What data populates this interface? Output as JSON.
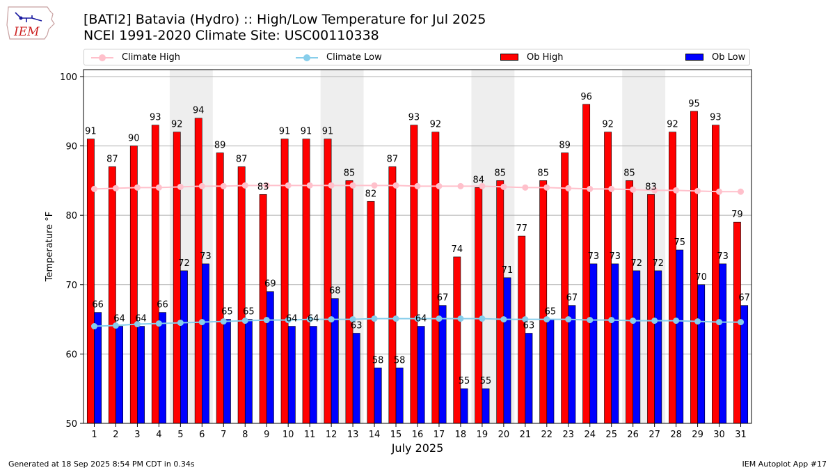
{
  "header": {
    "title_line1": "[BATI2] Batavia (Hydro) :: High/Low Temperature for Jul 2025",
    "title_line2": "NCEI 1991-2020 Climate Site: USC00110338",
    "logo_text": "IEM"
  },
  "footer": {
    "generated": "Generated at 18 Sep 2025 8:54 PM CDT in 0.34s",
    "app": "IEM Autoplot App #17"
  },
  "colors": {
    "ob_high": "#ff0000",
    "ob_low": "#0000ff",
    "climate_high": "#ffc0cb",
    "climate_low": "#87ceeb",
    "weekend_shade": "#eeeeee",
    "grid": "#b0b0b0"
  },
  "chart_data": {
    "type": "bar",
    "xlabel": "July 2025",
    "ylabel": "Temperature °F",
    "ylim": [
      50,
      101
    ],
    "yticks": [
      50,
      60,
      70,
      80,
      90,
      100
    ],
    "grid": "horizontal",
    "legend_position": "top",
    "categories": [
      "1",
      "2",
      "3",
      "4",
      "5",
      "6",
      "7",
      "8",
      "9",
      "10",
      "11",
      "12",
      "13",
      "14",
      "15",
      "16",
      "17",
      "18",
      "19",
      "20",
      "21",
      "22",
      "23",
      "24",
      "25",
      "26",
      "27",
      "28",
      "29",
      "30",
      "31"
    ],
    "shaded_weekends": [
      [
        5,
        6
      ],
      [
        12,
        13
      ],
      [
        19,
        20
      ],
      [
        26,
        27
      ]
    ],
    "legend": [
      "Climate High",
      "Climate Low",
      "Ob High",
      "Ob Low"
    ],
    "series": [
      {
        "name": "Ob High",
        "type": "bar",
        "values": [
          91,
          87,
          90,
          93,
          92,
          94,
          89,
          87,
          83,
          91,
          91,
          91,
          85,
          82,
          87,
          93,
          92,
          74,
          84,
          85,
          77,
          85,
          89,
          96,
          92,
          85,
          83,
          92,
          95,
          93,
          79
        ]
      },
      {
        "name": "Ob Low",
        "type": "bar",
        "values": [
          66,
          64,
          64,
          66,
          72,
          73,
          65,
          65,
          69,
          64,
          64,
          68,
          63,
          58,
          58,
          64,
          67,
          55,
          55,
          71,
          63,
          65,
          67,
          73,
          73,
          72,
          72,
          75,
          70,
          73,
          67
        ]
      },
      {
        "name": "Climate High",
        "type": "line",
        "values": [
          83.8,
          83.9,
          84.0,
          84.0,
          84.1,
          84.2,
          84.2,
          84.3,
          84.3,
          84.3,
          84.3,
          84.3,
          84.3,
          84.3,
          84.3,
          84.2,
          84.2,
          84.2,
          84.2,
          84.1,
          84.0,
          84.0,
          83.9,
          83.8,
          83.8,
          83.7,
          83.6,
          83.6,
          83.5,
          83.4,
          83.4
        ]
      },
      {
        "name": "Climate Low",
        "type": "line",
        "values": [
          64.0,
          64.1,
          64.3,
          64.4,
          64.5,
          64.6,
          64.7,
          64.8,
          64.9,
          64.9,
          65.0,
          65.0,
          65.0,
          65.1,
          65.1,
          65.1,
          65.1,
          65.1,
          65.1,
          65.0,
          65.0,
          65.0,
          65.0,
          64.9,
          64.9,
          64.8,
          64.8,
          64.8,
          64.7,
          64.6,
          64.6
        ]
      }
    ]
  }
}
